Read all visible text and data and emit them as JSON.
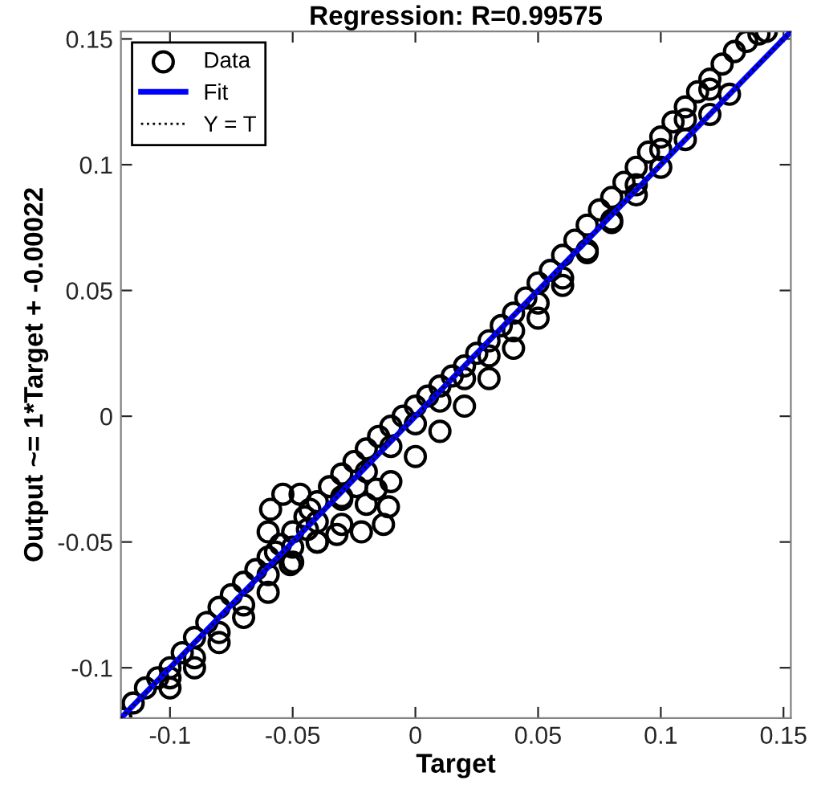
{
  "chart_data": {
    "type": "scatter",
    "title": "Regression: R=0.99575",
    "xlabel": "Target",
    "ylabel": "Output ~= 1*Target + -0.00022",
    "xlim": [
      -0.12,
      0.153
    ],
    "ylim": [
      -0.12,
      0.153
    ],
    "xticks": [
      -0.1,
      -0.05,
      0,
      0.05,
      0.1,
      0.15
    ],
    "yticks": [
      -0.1,
      -0.05,
      0,
      0.05,
      0.1,
      0.15
    ],
    "grid": false,
    "legend": "top left",
    "series": [
      {
        "name": "Data",
        "marker": "circle",
        "color": "#000000",
        "x": [
          -0.12,
          -0.115,
          -0.11,
          -0.105,
          -0.1,
          -0.095,
          -0.09,
          -0.085,
          -0.08,
          -0.075,
          -0.07,
          -0.065,
          -0.06,
          -0.055,
          -0.05,
          -0.045,
          -0.04,
          -0.035,
          -0.03,
          -0.025,
          -0.02,
          -0.015,
          -0.01,
          -0.005,
          0.0,
          0.005,
          0.01,
          0.015,
          0.02,
          0.025,
          0.03,
          0.035,
          0.04,
          0.045,
          0.05,
          0.055,
          0.06,
          0.065,
          0.07,
          0.075,
          0.08,
          0.085,
          0.09,
          0.095,
          0.1,
          0.105,
          0.11,
          0.115,
          0.12,
          0.125,
          0.13,
          0.135,
          0.14,
          0.143,
          -0.1,
          -0.09,
          -0.08,
          -0.07,
          -0.06,
          -0.05,
          -0.04,
          -0.03,
          -0.02,
          -0.01,
          0.0,
          0.01,
          0.02,
          0.03,
          0.04,
          0.05,
          0.06,
          0.07,
          0.08,
          0.09,
          0.1,
          0.11,
          0.12,
          0.128,
          -0.1,
          -0.09,
          -0.08,
          -0.07,
          -0.06,
          -0.05,
          -0.04,
          -0.03,
          -0.02,
          -0.01,
          0.0,
          0.01,
          0.02,
          0.03,
          0.04,
          0.05,
          0.06,
          0.07,
          0.08,
          0.09,
          0.1,
          0.11,
          0.12,
          -0.051,
          -0.057,
          -0.06,
          -0.059,
          -0.054,
          -0.047,
          -0.043,
          -0.044,
          -0.04,
          -0.032,
          -0.022,
          -0.013,
          -0.011,
          -0.016,
          -0.024,
          -0.03
        ],
        "values": [
          -0.12,
          -0.114,
          -0.108,
          -0.104,
          -0.1,
          -0.094,
          -0.088,
          -0.082,
          -0.076,
          -0.071,
          -0.066,
          -0.061,
          -0.056,
          -0.051,
          -0.046,
          -0.04,
          -0.034,
          -0.028,
          -0.023,
          -0.018,
          -0.013,
          -0.008,
          -0.004,
          0.0,
          0.004,
          0.008,
          0.012,
          0.016,
          0.02,
          0.025,
          0.03,
          0.036,
          0.041,
          0.047,
          0.053,
          0.058,
          0.064,
          0.07,
          0.076,
          0.082,
          0.087,
          0.093,
          0.099,
          0.105,
          0.111,
          0.117,
          0.123,
          0.129,
          0.134,
          0.14,
          0.145,
          0.149,
          0.152,
          0.153,
          -0.104,
          -0.096,
          -0.086,
          -0.075,
          -0.063,
          -0.052,
          -0.042,
          -0.032,
          -0.022,
          -0.012,
          -0.003,
          0.006,
          0.015,
          0.024,
          0.034,
          0.045,
          0.055,
          0.066,
          0.077,
          0.088,
          0.099,
          0.11,
          0.12,
          0.128,
          -0.108,
          -0.1,
          -0.09,
          -0.08,
          -0.07,
          -0.058,
          -0.05,
          -0.043,
          -0.035,
          -0.026,
          -0.016,
          -0.006,
          0.004,
          0.015,
          0.027,
          0.039,
          0.052,
          0.065,
          0.078,
          0.092,
          0.106,
          0.118,
          0.13,
          -0.059,
          -0.054,
          -0.046,
          -0.037,
          -0.031,
          -0.031,
          -0.037,
          -0.045,
          -0.05,
          -0.047,
          -0.046,
          -0.043,
          -0.036,
          -0.029,
          -0.028,
          -0.033
        ]
      },
      {
        "name": "Fit",
        "type": "line",
        "color": "#0000ff",
        "line_style": "solid",
        "x": [
          -0.12,
          0.153
        ],
        "values": [
          -0.12,
          0.153
        ]
      },
      {
        "name": "Y = T",
        "type": "line",
        "color": "#000000",
        "line_style": "dotted",
        "x": [
          -0.12,
          0.153
        ],
        "values": [
          -0.12,
          0.153
        ]
      }
    ]
  }
}
